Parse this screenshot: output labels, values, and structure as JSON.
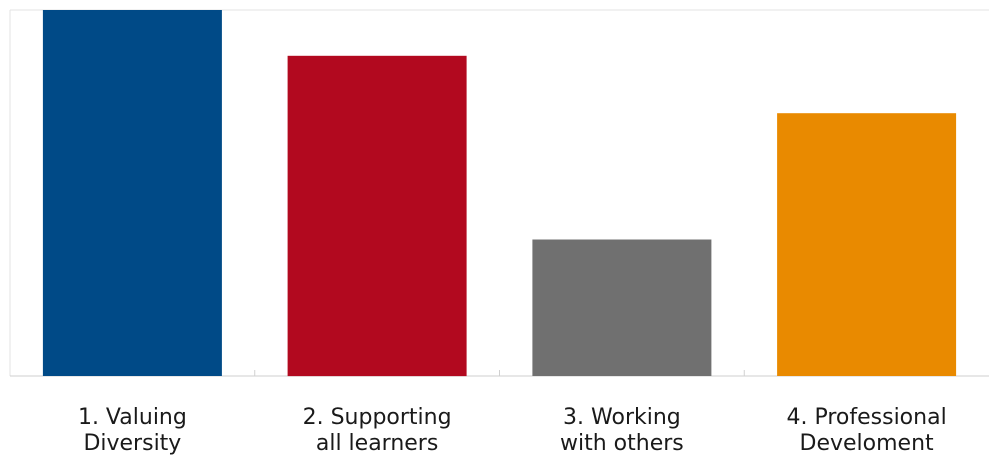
{
  "chart_data": {
    "type": "bar",
    "categories": [
      [
        "1.  Valuing",
        "Diversity"
      ],
      [
        "2.  Supporting",
        "all learners"
      ],
      [
        "3.  Working",
        "with others"
      ],
      [
        "4.  Professional",
        "Develoment"
      ]
    ],
    "values": [
      100,
      87.5,
      37.3,
      71.8
    ],
    "colors": [
      "#004a87",
      "#b2091f",
      "#707070",
      "#e98a00"
    ],
    "ylim": [
      0,
      100
    ],
    "grid": false,
    "title": "",
    "xlabel": "",
    "ylabel": ""
  }
}
